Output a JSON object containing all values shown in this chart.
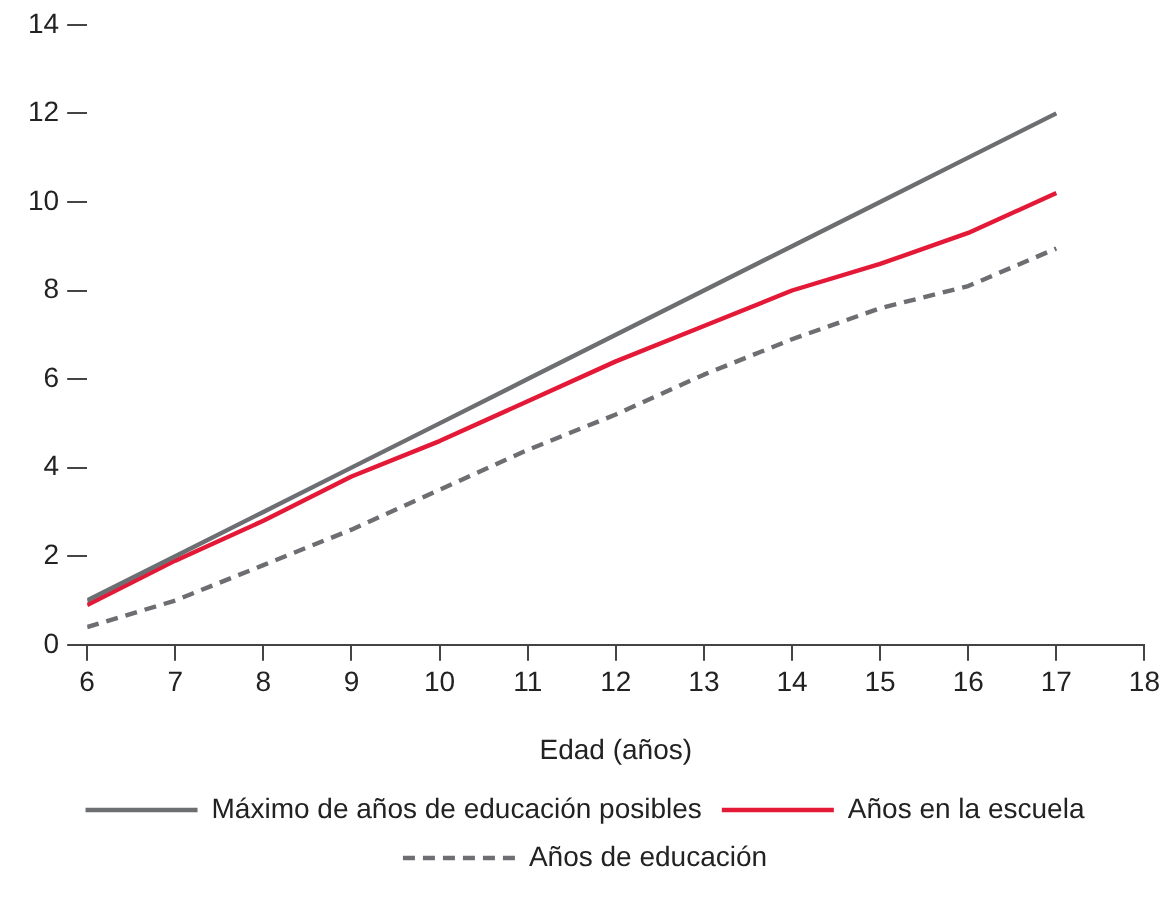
{
  "chart_data": {
    "type": "line",
    "xlabel": "Edad (años)",
    "x": [
      6,
      7,
      8,
      9,
      10,
      11,
      12,
      13,
      14,
      15,
      16,
      17
    ],
    "xlim": [
      6,
      18
    ],
    "xticks": [
      6,
      7,
      8,
      9,
      10,
      11,
      12,
      13,
      14,
      15,
      16,
      17,
      18
    ],
    "ylim": [
      0,
      14
    ],
    "yticks": [
      0,
      2,
      4,
      6,
      8,
      10,
      12,
      14
    ],
    "grid": false,
    "legend": "bottom",
    "marker": "none",
    "series": [
      {
        "name": "Máximo de años de educación posibles",
        "color": "#6d6e71",
        "line_style": "solid",
        "values": [
          1,
          2,
          3,
          4,
          5,
          6,
          7,
          8,
          9,
          10,
          11,
          12
        ]
      },
      {
        "name": "Años en la escuela",
        "color": "#e31937",
        "line_style": "solid",
        "values": [
          0.9,
          1.9,
          2.8,
          3.8,
          4.6,
          5.5,
          6.4,
          7.2,
          8.0,
          8.6,
          9.3,
          10.2
        ]
      },
      {
        "name": "Años de educación",
        "color": "#6d6e71",
        "line_style": "dashed",
        "values": [
          0.4,
          1.0,
          1.8,
          2.6,
          3.5,
          4.4,
          5.2,
          6.1,
          6.9,
          7.6,
          8.1,
          8.95
        ]
      }
    ]
  }
}
